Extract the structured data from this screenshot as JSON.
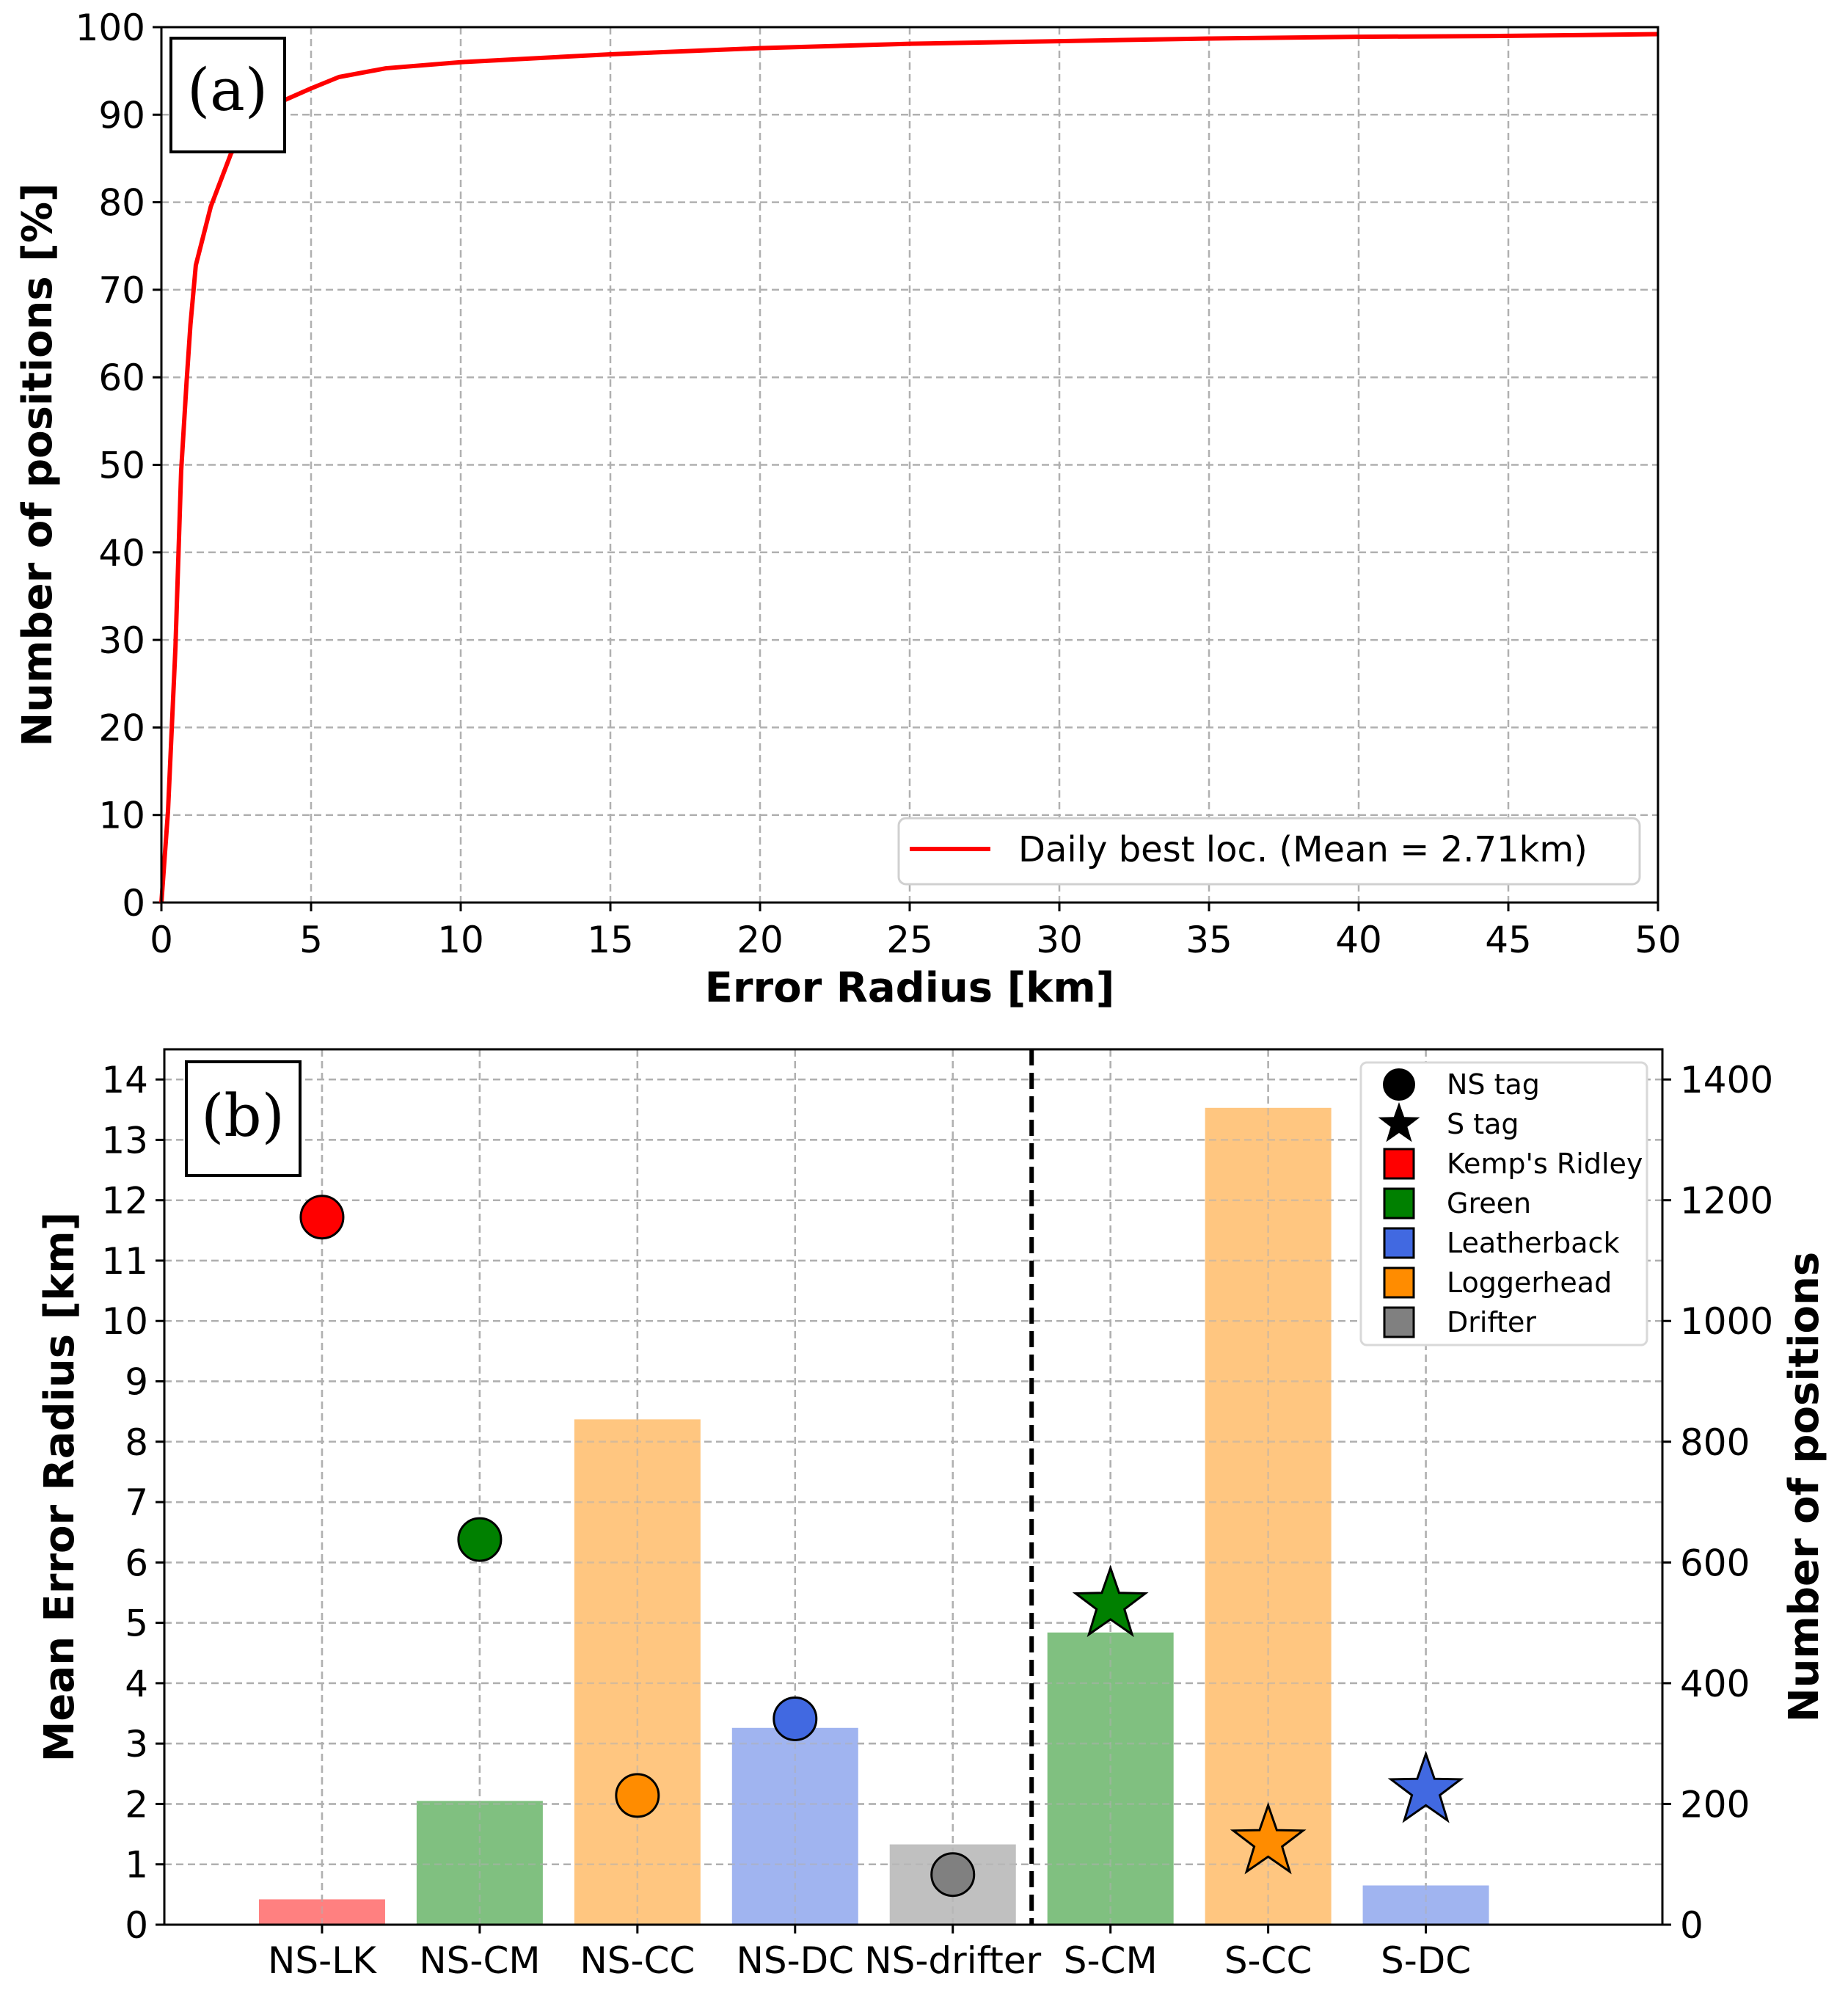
{
  "chart_data": [
    {
      "type": "line",
      "panel_label": "(a)",
      "xlabel": "Error Radius [km]",
      "ylabel": "Number of positions [%]",
      "xlim": [
        0,
        50
      ],
      "ylim": [
        0,
        100
      ],
      "xticks": [
        0,
        5,
        10,
        15,
        20,
        25,
        30,
        35,
        40,
        45,
        50
      ],
      "yticks": [
        0,
        10,
        20,
        30,
        40,
        50,
        60,
        70,
        80,
        90,
        100
      ],
      "grid": true,
      "legend_position": "lower-right",
      "series": [
        {
          "name": "Daily best loc. (Mean = 2.71km)",
          "color": "#ff0000",
          "x": [
            0,
            0.22,
            0.47,
            0.66,
            0.84,
            0.97,
            1.15,
            1.65,
            2.33,
            3.0,
            4.07,
            5,
            5.93,
            7.5,
            10,
            15,
            20,
            25,
            30,
            35,
            40,
            45,
            50
          ],
          "y": [
            0,
            10.4,
            29.2,
            49.3,
            59.4,
            66,
            72.8,
            79.5,
            85.6,
            88.5,
            91.6,
            93,
            94.3,
            95.3,
            96,
            96.9,
            97.6,
            98.1,
            98.4,
            98.7,
            98.9,
            99.0,
            99.2
          ]
        }
      ]
    },
    {
      "type": "bar",
      "panel_label": "(b)",
      "ylabel": "Mean Error Radius [km]",
      "ylabel_right": "Number of positions",
      "categories": [
        "NS-LK",
        "NS-CM",
        "NS-CC",
        "NS-DC",
        "NS-drifter",
        "S-CM",
        "S-CC",
        "S-DC"
      ],
      "ylim": [
        0,
        14.5
      ],
      "ylim_right": [
        0,
        1450
      ],
      "yticks": [
        0,
        1,
        2,
        3,
        4,
        5,
        6,
        7,
        8,
        9,
        10,
        11,
        12,
        13,
        14
      ],
      "yticks_right": [
        0,
        200,
        400,
        600,
        800,
        1000,
        1200,
        1400
      ],
      "grid": true,
      "divider_after_category": "NS-drifter",
      "legend_position": "top-right",
      "bars_number_of_positions": [
        42,
        205,
        837,
        326,
        133,
        484,
        1353,
        65
      ],
      "mean_error_radius_km": [
        11.72,
        6.38,
        2.14,
        3.41,
        0.83,
        5.3,
        1.37,
        2.22
      ],
      "marker_shape": [
        "circle",
        "circle",
        "circle",
        "circle",
        "circle",
        "star",
        "star",
        "star"
      ],
      "category_species": [
        "Kemp's Ridley",
        "Green",
        "Loggerhead",
        "Leatherback",
        "Drifter",
        "Green",
        "Loggerhead",
        "Leatherback"
      ],
      "legend": {
        "markers": [
          {
            "label": "NS tag",
            "shape": "circle"
          },
          {
            "label": "S tag",
            "shape": "star"
          }
        ],
        "species": [
          {
            "label": "Kemp's Ridley",
            "color": "#ff0000"
          },
          {
            "label": "Green",
            "color": "#008000"
          },
          {
            "label": "Leatherback",
            "color": "#4169e1"
          },
          {
            "label": "Loggerhead",
            "color": "#ff8c00"
          },
          {
            "label": "Drifter",
            "color": "#808080"
          }
        ]
      }
    }
  ]
}
